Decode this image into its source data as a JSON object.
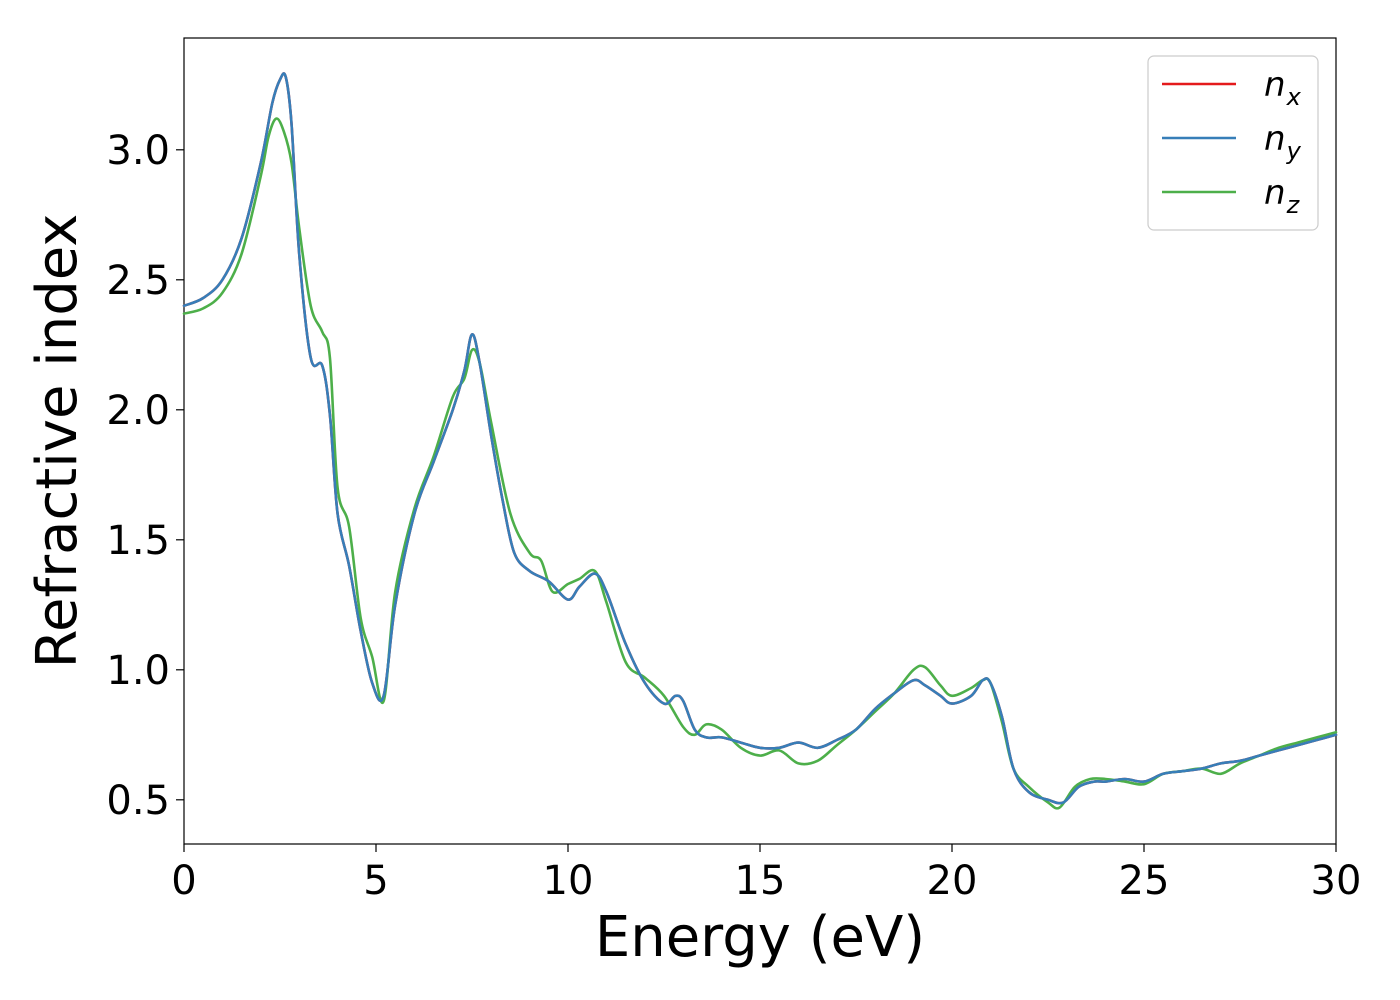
{
  "chart_data": {
    "type": "line",
    "xlabel": "Energy (eV)",
    "ylabel": "Refractive index",
    "xlim": [
      0,
      30
    ],
    "ylim": [
      0.33,
      3.43
    ],
    "xticks": [
      0,
      5,
      10,
      15,
      20,
      25,
      30
    ],
    "xtick_labels": [
      "0",
      "5",
      "10",
      "15",
      "20",
      "25",
      "30"
    ],
    "yticks": [
      0.5,
      1.0,
      1.5,
      2.0,
      2.5,
      3.0
    ],
    "ytick_labels": [
      "0.5",
      "1.0",
      "1.5",
      "2.0",
      "2.5",
      "3.0"
    ],
    "grid": false,
    "legend_position": "top-right",
    "series": [
      {
        "name": "n_x",
        "label_base": "n",
        "label_sub": "x",
        "color": "#e41a1c",
        "x": [
          0,
          0.5,
          1.0,
          1.5,
          2.0,
          2.3,
          2.5,
          2.65,
          2.8,
          3.0,
          3.3,
          3.6,
          3.8,
          4.0,
          4.3,
          4.6,
          4.9,
          5.2,
          5.5,
          6.0,
          6.5,
          7.0,
          7.3,
          7.5,
          7.7,
          8.0,
          8.3,
          8.6,
          9.0,
          9.5,
          10.0,
          10.3,
          10.7,
          11.0,
          11.5,
          12.0,
          12.5,
          12.8,
          13.0,
          13.3,
          13.6,
          14.0,
          14.5,
          15.0,
          15.5,
          16.0,
          16.5,
          17.0,
          17.5,
          18.0,
          18.5,
          19.0,
          19.3,
          19.7,
          20.0,
          20.5,
          20.8,
          21.0,
          21.3,
          21.6,
          22.0,
          22.5,
          22.9,
          23.3,
          23.7,
          24.0,
          24.5,
          25.0,
          25.5,
          26.0,
          26.5,
          27.0,
          27.5,
          28.0,
          28.5,
          29.0,
          29.5,
          30.0
        ],
        "y": [
          2.4,
          2.43,
          2.5,
          2.66,
          2.95,
          3.18,
          3.27,
          3.28,
          3.1,
          2.6,
          2.2,
          2.17,
          1.98,
          1.6,
          1.4,
          1.15,
          0.95,
          0.9,
          1.25,
          1.6,
          1.8,
          2.0,
          2.15,
          2.29,
          2.18,
          1.9,
          1.65,
          1.45,
          1.38,
          1.34,
          1.27,
          1.32,
          1.37,
          1.3,
          1.1,
          0.95,
          0.87,
          0.9,
          0.88,
          0.77,
          0.74,
          0.74,
          0.72,
          0.7,
          0.7,
          0.72,
          0.7,
          0.73,
          0.77,
          0.85,
          0.91,
          0.96,
          0.94,
          0.9,
          0.87,
          0.9,
          0.96,
          0.95,
          0.82,
          0.62,
          0.53,
          0.5,
          0.49,
          0.55,
          0.57,
          0.57,
          0.58,
          0.57,
          0.6,
          0.61,
          0.62,
          0.64,
          0.65,
          0.67,
          0.69,
          0.71,
          0.73,
          0.75
        ]
      },
      {
        "name": "n_y",
        "label_base": "n",
        "label_sub": "y",
        "color": "#377eb8",
        "x": [
          0,
          0.5,
          1.0,
          1.5,
          2.0,
          2.3,
          2.5,
          2.65,
          2.8,
          3.0,
          3.3,
          3.6,
          3.8,
          4.0,
          4.3,
          4.6,
          4.9,
          5.2,
          5.5,
          6.0,
          6.5,
          7.0,
          7.3,
          7.5,
          7.7,
          8.0,
          8.3,
          8.6,
          9.0,
          9.5,
          10.0,
          10.3,
          10.7,
          11.0,
          11.5,
          12.0,
          12.5,
          12.8,
          13.0,
          13.3,
          13.6,
          14.0,
          14.5,
          15.0,
          15.5,
          16.0,
          16.5,
          17.0,
          17.5,
          18.0,
          18.5,
          19.0,
          19.3,
          19.7,
          20.0,
          20.5,
          20.8,
          21.0,
          21.3,
          21.6,
          22.0,
          22.5,
          22.9,
          23.3,
          23.7,
          24.0,
          24.5,
          25.0,
          25.5,
          26.0,
          26.5,
          27.0,
          27.5,
          28.0,
          28.5,
          29.0,
          29.5,
          30.0
        ],
        "y": [
          2.4,
          2.43,
          2.5,
          2.66,
          2.95,
          3.18,
          3.27,
          3.28,
          3.1,
          2.6,
          2.2,
          2.17,
          1.98,
          1.6,
          1.4,
          1.15,
          0.95,
          0.9,
          1.25,
          1.6,
          1.8,
          2.0,
          2.15,
          2.29,
          2.18,
          1.9,
          1.65,
          1.45,
          1.38,
          1.34,
          1.27,
          1.32,
          1.37,
          1.3,
          1.1,
          0.95,
          0.87,
          0.9,
          0.88,
          0.77,
          0.74,
          0.74,
          0.72,
          0.7,
          0.7,
          0.72,
          0.7,
          0.73,
          0.77,
          0.85,
          0.91,
          0.96,
          0.94,
          0.9,
          0.87,
          0.9,
          0.96,
          0.95,
          0.82,
          0.62,
          0.53,
          0.5,
          0.49,
          0.55,
          0.57,
          0.57,
          0.58,
          0.57,
          0.6,
          0.61,
          0.62,
          0.64,
          0.65,
          0.67,
          0.69,
          0.71,
          0.73,
          0.75
        ]
      },
      {
        "name": "n_z",
        "label_base": "n",
        "label_sub": "z",
        "color": "#4daf4a",
        "x": [
          0,
          0.5,
          1.0,
          1.5,
          2.0,
          2.2,
          2.4,
          2.6,
          2.8,
          3.0,
          3.3,
          3.6,
          3.8,
          4.0,
          4.3,
          4.6,
          4.9,
          5.2,
          5.5,
          6.0,
          6.5,
          7.0,
          7.3,
          7.5,
          7.7,
          8.0,
          8.5,
          9.0,
          9.3,
          9.6,
          10.0,
          10.3,
          10.7,
          11.0,
          11.5,
          12.0,
          12.5,
          13.0,
          13.3,
          13.6,
          14.0,
          14.5,
          15.0,
          15.5,
          16.0,
          16.5,
          17.0,
          17.5,
          18.0,
          18.5,
          19.0,
          19.3,
          19.7,
          20.0,
          20.5,
          20.8,
          21.0,
          21.3,
          21.6,
          22.0,
          22.5,
          22.8,
          23.2,
          23.6,
          24.0,
          24.5,
          25.0,
          25.5,
          26.0,
          26.5,
          27.0,
          27.5,
          28.0,
          28.5,
          29.0,
          29.5,
          30.0
        ],
        "y": [
          2.37,
          2.39,
          2.45,
          2.6,
          2.9,
          3.05,
          3.12,
          3.07,
          2.95,
          2.7,
          2.4,
          2.3,
          2.2,
          1.7,
          1.55,
          1.2,
          1.05,
          0.88,
          1.3,
          1.62,
          1.82,
          2.05,
          2.12,
          2.23,
          2.18,
          1.95,
          1.6,
          1.45,
          1.42,
          1.3,
          1.33,
          1.35,
          1.38,
          1.26,
          1.03,
          0.97,
          0.9,
          0.78,
          0.75,
          0.79,
          0.77,
          0.7,
          0.67,
          0.69,
          0.64,
          0.65,
          0.71,
          0.77,
          0.84,
          0.91,
          1.0,
          1.01,
          0.94,
          0.9,
          0.93,
          0.96,
          0.95,
          0.8,
          0.62,
          0.55,
          0.49,
          0.47,
          0.55,
          0.58,
          0.58,
          0.57,
          0.56,
          0.6,
          0.61,
          0.62,
          0.6,
          0.64,
          0.67,
          0.7,
          0.72,
          0.74,
          0.76
        ]
      }
    ]
  }
}
